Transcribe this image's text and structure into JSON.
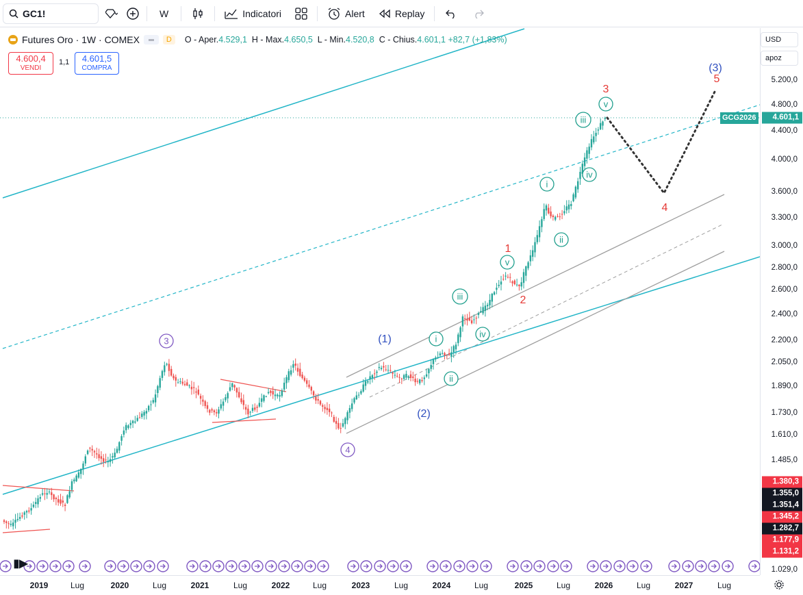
{
  "toolbar": {
    "symbol": "GC1!",
    "interval": "W",
    "indicators_label": "Indicatori",
    "alert_label": "Alert",
    "replay_label": "Replay"
  },
  "legend": {
    "title": "Futures Oro · 1W · COMEX",
    "source_badge": "D",
    "open_label": "O - Aper.",
    "open": "4.529,1",
    "high_label": "H - Max.",
    "high": "4.650,5",
    "low_label": "L - Min.",
    "low": "4.520,8",
    "close_label": "C - Chius.",
    "close": "4.601,1",
    "change": "+82,7 (+1,83%)"
  },
  "trade": {
    "sell_price": "4.600,4",
    "sell_label": "VENDI",
    "spread": "1,1",
    "buy_price": "4.601,5",
    "buy_label": "COMPRA"
  },
  "price_scale": {
    "currency": "USD",
    "mode": "apoz",
    "ticks": [
      "5.200,0",
      "4.800,0",
      "4.400,0",
      "4.000,0",
      "3.600,0",
      "3.300,0",
      "3.000,0",
      "2.800,0",
      "2.600,0",
      "2.400,0",
      "2.200,0",
      "2.050,0",
      "1.890,0",
      "1.730,0",
      "1.610,0",
      "1.485,0",
      "1.029,0"
    ],
    "last_price": "4.601,1",
    "last_symbol": "GCG2026",
    "levels": [
      {
        "value": "1.380,3",
        "color": "#f23645"
      },
      {
        "value": "1.355,0",
        "color": "#131722"
      },
      {
        "value": "1.351,4",
        "color": "#131722"
      },
      {
        "value": "1.345,2",
        "color": "#f23645"
      },
      {
        "value": "1.282,7",
        "color": "#131722"
      },
      {
        "value": "1.177,9",
        "color": "#f23645"
      },
      {
        "value": "1.131,2",
        "color": "#f23645"
      }
    ]
  },
  "time_scale": {
    "labels": [
      "2019",
      "Lug",
      "2020",
      "Lug",
      "2021",
      "Lug",
      "2022",
      "Lug",
      "2023",
      "Lug",
      "2024",
      "Lug",
      "2025",
      "Lug",
      "2026",
      "Lug",
      "2027",
      "Lug"
    ]
  },
  "waves": {
    "w3_circle": "3",
    "w4_circle": "4",
    "w1_paren": "(1)",
    "w2_paren": "(2)",
    "w3_paren": "(3)",
    "red1": "1",
    "red2": "2",
    "red3": "3",
    "red4": "4",
    "red5": "5",
    "i_a": "i",
    "ii_a": "ii",
    "iii_a": "iii",
    "iv_a": "iv",
    "v_a": "v",
    "i_b": "i",
    "ii_b": "ii",
    "iii_b": "iii",
    "iv_b": "iv",
    "v_b": "v"
  },
  "colors": {
    "bull": "#26a69a",
    "bear": "#ef5350",
    "channel": "#22b5c7",
    "gray_channel": "#9e9e9e",
    "purple": "#7e57c2",
    "blue": "#2f4fbf",
    "red": "#e53935",
    "teal": "#1e9e8c"
  }
}
